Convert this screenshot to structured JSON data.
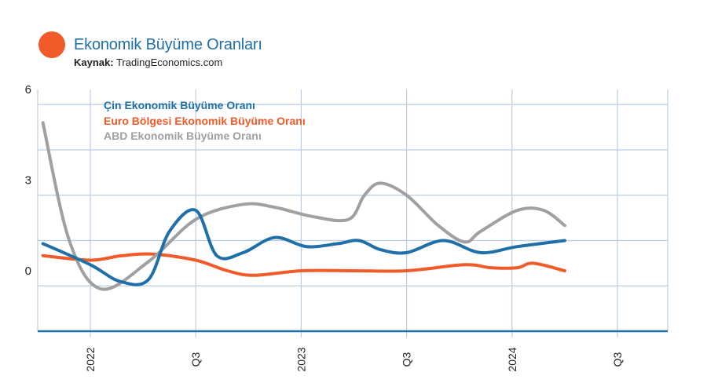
{
  "header": {
    "title": "Ekonomik Büyüme Oranları",
    "source_label": "Kaynak:",
    "source_value": "TradingEconomics.com"
  },
  "colors": {
    "accent_dot": "#f15a29",
    "china": "#1f6fa8",
    "euro": "#f15a29",
    "usa": "#a0a0a0",
    "axis": "#1f6fa8",
    "grid": "#b9cde3"
  },
  "chart_data": {
    "type": "line",
    "x": [
      "2022",
      "Q3",
      "2023",
      "Q3",
      "2024",
      "Q3"
    ],
    "ylim": [
      -2,
      6
    ],
    "yticks": [
      0,
      3,
      6
    ],
    "legend_position": "top-left",
    "grid": true,
    "series": [
      {
        "name": "Çin Ekonomik Büyüme Oranı",
        "points": [
          [
            -0.45,
            0.9
          ],
          [
            0,
            0.2
          ],
          [
            0.28,
            -0.35
          ],
          [
            0.55,
            -0.3
          ],
          [
            0.75,
            1.3
          ],
          [
            1,
            2.0
          ],
          [
            1.2,
            0.5
          ],
          [
            1.45,
            0.6
          ],
          [
            1.75,
            1.1
          ],
          [
            2.05,
            0.8
          ],
          [
            2.35,
            0.9
          ],
          [
            2.55,
            1.0
          ],
          [
            2.75,
            0.7
          ],
          [
            3.0,
            0.6
          ],
          [
            3.35,
            1.0
          ],
          [
            3.7,
            0.6
          ],
          [
            4.05,
            0.8
          ],
          [
            4.5,
            1.0
          ]
        ]
      },
      {
        "name": "Euro Bölgesi Ekonomik Büyüme Oranı",
        "points": [
          [
            -0.45,
            0.5
          ],
          [
            0,
            0.35
          ],
          [
            0.3,
            0.5
          ],
          [
            0.6,
            0.55
          ],
          [
            1,
            0.35
          ],
          [
            1.3,
            0.0
          ],
          [
            1.55,
            -0.15
          ],
          [
            2,
            0.0
          ],
          [
            2.5,
            0.0
          ],
          [
            3,
            0.0
          ],
          [
            3.55,
            0.2
          ],
          [
            3.8,
            0.1
          ],
          [
            4.05,
            0.1
          ],
          [
            4.2,
            0.25
          ],
          [
            4.5,
            0.0
          ]
        ]
      },
      {
        "name": "ABD Ekonomik Büyüme Oranı",
        "points": [
          [
            -0.45,
            4.9
          ],
          [
            -0.2,
            1.0
          ],
          [
            0.1,
            -0.6
          ],
          [
            0.55,
            0.3
          ],
          [
            1,
            1.7
          ],
          [
            1.45,
            2.2
          ],
          [
            1.75,
            2.1
          ],
          [
            2.1,
            1.8
          ],
          [
            2.45,
            1.7
          ],
          [
            2.6,
            2.5
          ],
          [
            2.75,
            2.9
          ],
          [
            3.0,
            2.5
          ],
          [
            3.3,
            1.5
          ],
          [
            3.55,
            0.95
          ],
          [
            3.7,
            1.3
          ],
          [
            4.05,
            2.0
          ],
          [
            4.3,
            2.0
          ],
          [
            4.5,
            1.5
          ]
        ]
      }
    ]
  }
}
